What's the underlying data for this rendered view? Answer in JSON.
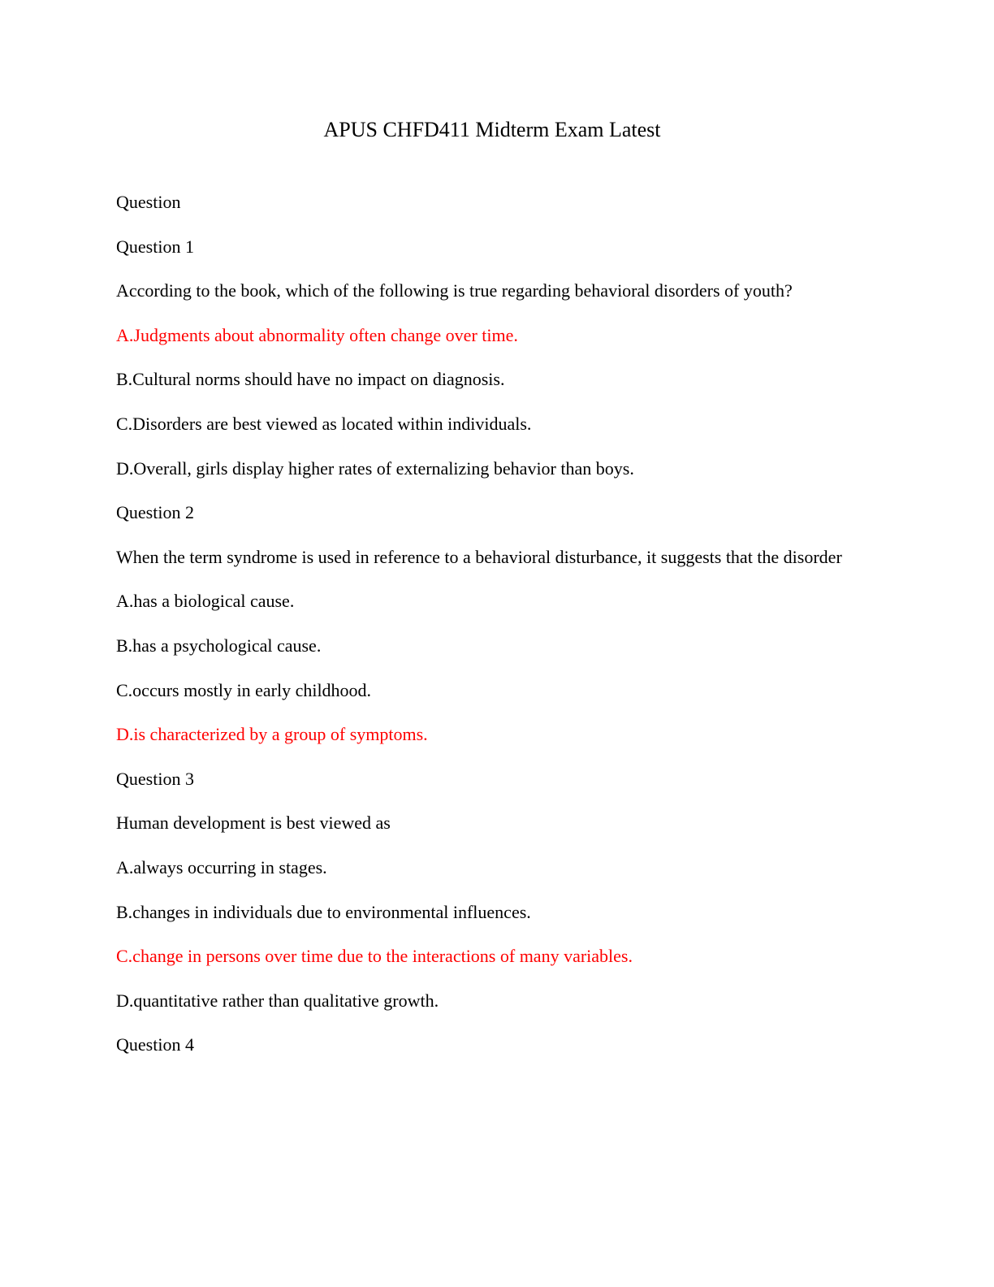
{
  "title": "APUS CHFD411 Midterm Exam Latest",
  "heading": "Question",
  "questions": [
    {
      "label": "Question 1",
      "text": "According to the book, which of the following is true regarding behavioral disorders of youth?",
      "options": [
        {
          "text": "A.Judgments about abnormality often change over time.",
          "correct": true
        },
        {
          "text": "B.Cultural norms should have no impact on diagnosis.",
          "correct": false
        },
        {
          "text": "C.Disorders are best viewed as located within individuals.",
          "correct": false
        },
        {
          "text": "D.Overall, girls display higher rates of externalizing behavior than boys.",
          "correct": false
        }
      ]
    },
    {
      "label": "Question 2",
      "text": "When the term syndrome is used in reference to a behavioral disturbance, it suggests that the disorder",
      "options": [
        {
          "text": "A.has a biological cause.",
          "correct": false
        },
        {
          "text": "B.has a psychological cause.",
          "correct": false
        },
        {
          "text": "C.occurs mostly in early childhood.",
          "correct": false
        },
        {
          "text": "D.is characterized by a group of symptoms.",
          "correct": true
        }
      ]
    },
    {
      "label": "Question 3",
      "text": "Human development is best viewed as",
      "options": [
        {
          "text": "A.always occurring in stages.",
          "correct": false
        },
        {
          "text": "B.changes in individuals due to environmental influences.",
          "correct": false
        },
        {
          "text": "C.change in persons over time due to the interactions of many variables.",
          "correct": true
        },
        {
          "text": "D.quantitative rather than qualitative growth.",
          "correct": false
        }
      ]
    },
    {
      "label": "Question 4"
    }
  ]
}
